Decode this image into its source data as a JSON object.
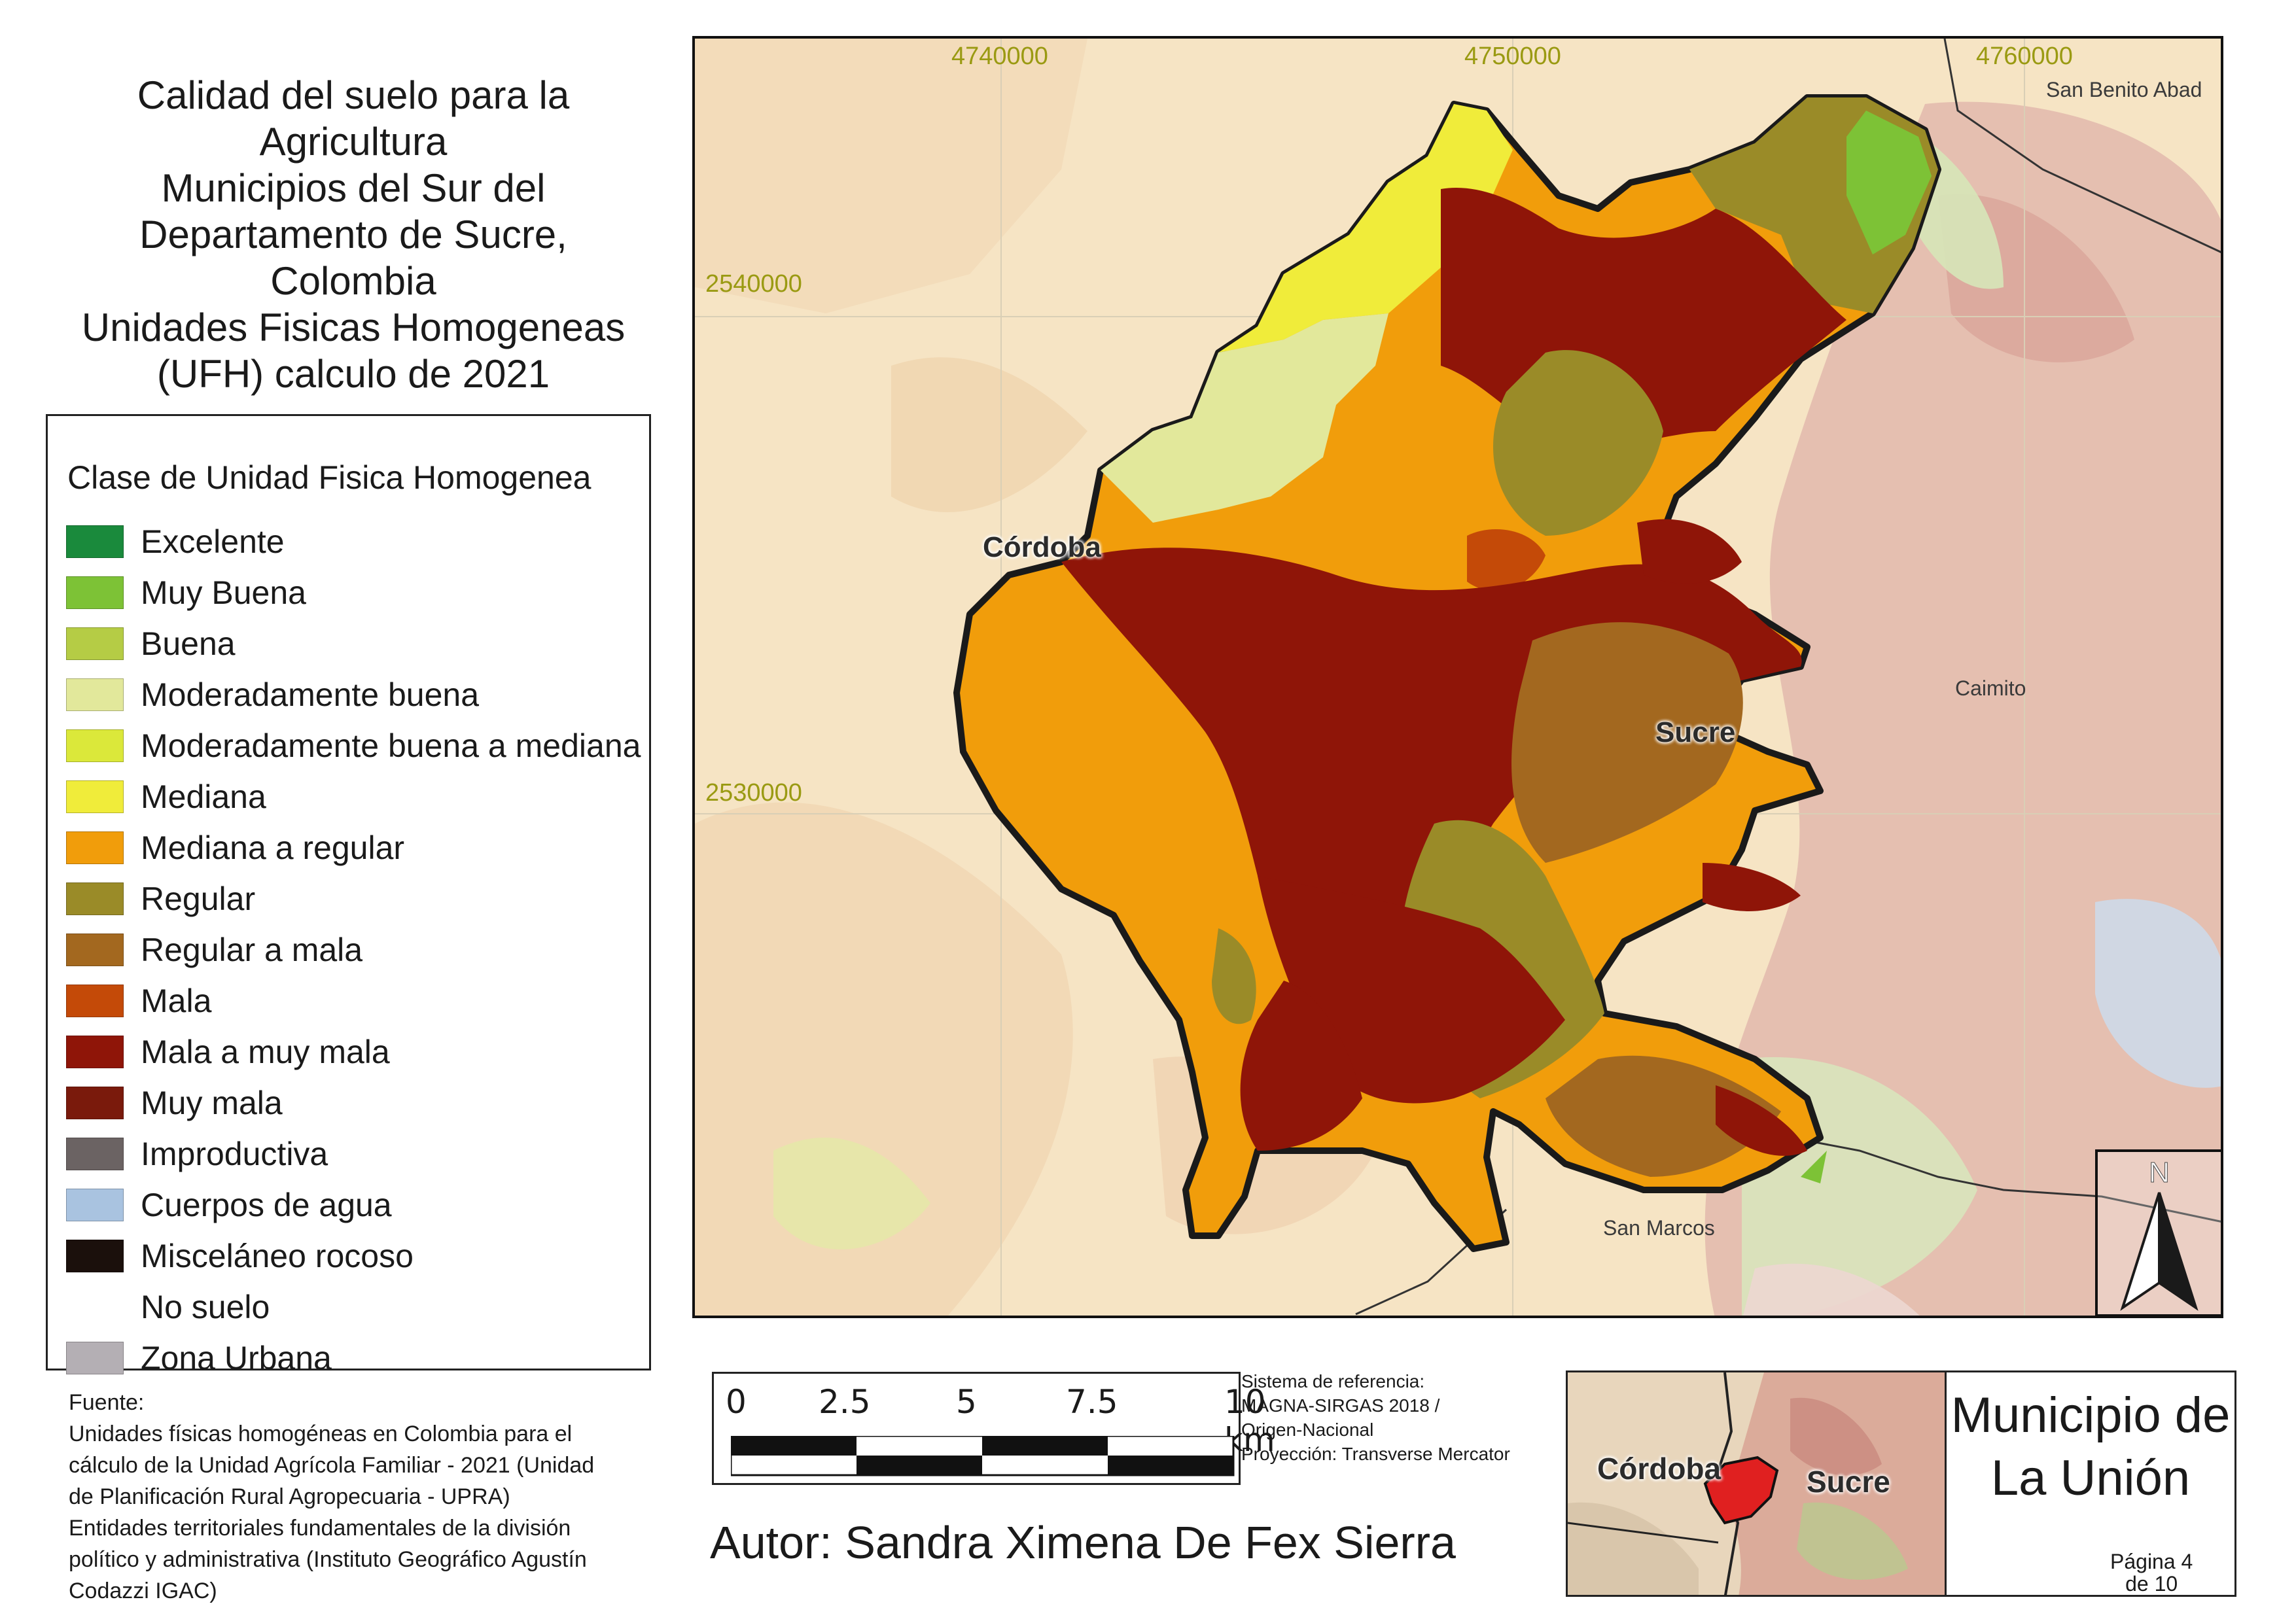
{
  "title": "Calidad del suelo para la\nAgricultura\nMunicipios del Sur del\nDepartamento de Sucre,\nColombia\nUnidades Fisicas Homogeneas\n(UFH) calculo de 2021",
  "legend": {
    "heading": "Clase de Unidad Fisica Homogenea",
    "items": [
      {
        "label": "Excelente",
        "color": "#1a8a3c"
      },
      {
        "label": "Muy Buena",
        "color": "#7dc236"
      },
      {
        "label": "Buena",
        "color": "#b5cc45"
      },
      {
        "label": "Moderadamente buena",
        "color": "#e2e89b"
      },
      {
        "label": "Moderadamente buena a mediana",
        "color": "#dbe83a"
      },
      {
        "label": "Mediana",
        "color": "#f0ec3a"
      },
      {
        "label": "Mediana a regular",
        "color": "#f19d0b"
      },
      {
        "label": "Regular",
        "color": "#9a8b28"
      },
      {
        "label": "Regular a mala",
        "color": "#a3681f"
      },
      {
        "label": "Mala",
        "color": "#c44a08"
      },
      {
        "label": "Mala a muy mala",
        "color": "#8f1508"
      },
      {
        "label": "Muy mala",
        "color": "#7a1a0c"
      },
      {
        "label": "Improductiva",
        "color": "#6b6363"
      },
      {
        "label": "Cuerpos de agua",
        "color": "#a9c3e0"
      },
      {
        "label": "Misceláneo rocoso",
        "color": "#1b100c"
      },
      {
        "label": "No suelo",
        "color": "#ffffff"
      },
      {
        "label": "Zona Urbana",
        "color": "#b4afb4"
      }
    ]
  },
  "source": "Fuente:\nUnidades físicas homogéneas en Colombia para el\ncálculo de la Unidad Agrícola Familiar - 2021 (Unidad\nde Planificación Rural Agropecuaria - UPRA)\nEntidades territoriales fundamentales de la división\npolítico y administrativa (Instituto Geográfico Agustín\nCodazzi IGAC)",
  "map": {
    "grid_x_labels": [
      "4740000",
      "4750000",
      "4760000"
    ],
    "grid_y_labels": [
      "2540000",
      "2530000"
    ],
    "places": [
      "San Benito Abad",
      "Caimito",
      "San Marcos"
    ],
    "regions": [
      "Córdoba",
      "Sucre"
    ],
    "north_arrow": "N"
  },
  "scale": {
    "ticks": [
      "0",
      "2.5",
      "5",
      "7.5",
      "10 km"
    ]
  },
  "crs": "Sistema de referencia:\nMAGNA-SIRGAS 2018 /\nOrigen-Nacional\nProyección: Transverse Mercator",
  "author": "Autor: Sandra Ximena De Fex Sierra",
  "inset": {
    "labels": [
      "Córdoba",
      "Sucre"
    ]
  },
  "municipality": {
    "title": "Municipio de\nLa Unión",
    "page": "Página 4\nde 10"
  }
}
